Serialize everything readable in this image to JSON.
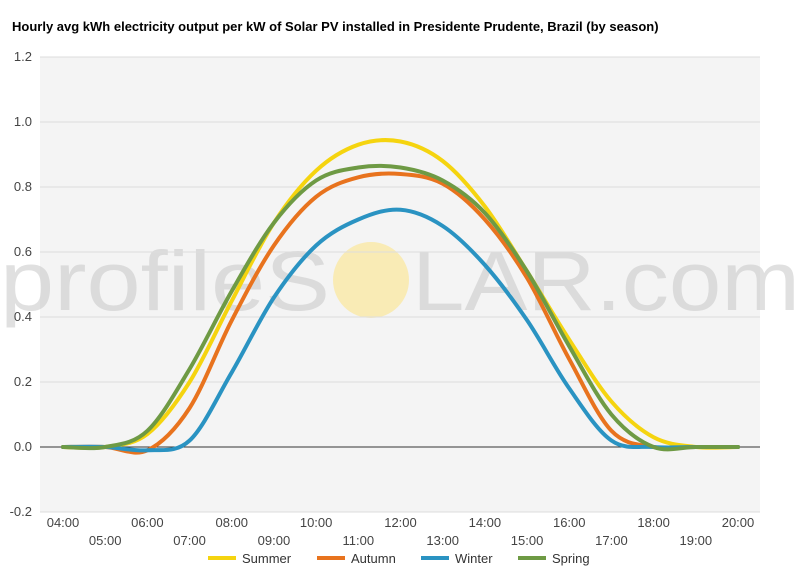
{
  "chart_data": {
    "type": "line",
    "title": "Hourly avg kWh electricity output per kW of Solar PV installed in Presidente Prudente, Brazil (by season)",
    "xlabel": "",
    "ylabel": "",
    "categories": [
      "04:00",
      "05:00",
      "06:00",
      "07:00",
      "08:00",
      "09:00",
      "10:00",
      "11:00",
      "12:00",
      "13:00",
      "14:00",
      "15:00",
      "16:00",
      "17:00",
      "18:00",
      "19:00",
      "20:00"
    ],
    "ylim": [
      -0.2,
      1.2
    ],
    "yticks": [
      -0.2,
      0.0,
      0.2,
      0.4,
      0.6,
      0.8,
      1.0,
      1.2
    ],
    "ytick_labels": [
      "-0.2",
      "0.0",
      "0.2",
      "0.4",
      "0.6",
      "0.8",
      "1.0",
      "1.2"
    ],
    "grid": true,
    "legend_position": "bottom",
    "series": [
      {
        "name": "Summer",
        "color": "#f5d40f",
        "values": [
          0.0,
          0.0,
          0.04,
          0.2,
          0.45,
          0.69,
          0.85,
          0.93,
          0.94,
          0.88,
          0.74,
          0.54,
          0.33,
          0.14,
          0.03,
          0.0,
          0.0
        ]
      },
      {
        "name": "Autumn",
        "color": "#e8731e",
        "values": [
          0.0,
          0.0,
          -0.01,
          0.12,
          0.39,
          0.62,
          0.77,
          0.83,
          0.84,
          0.81,
          0.7,
          0.52,
          0.27,
          0.05,
          0.0,
          0.0,
          0.0
        ]
      },
      {
        "name": "Winter",
        "color": "#2a93c2",
        "values": [
          0.0,
          0.0,
          -0.01,
          0.02,
          0.23,
          0.46,
          0.62,
          0.7,
          0.73,
          0.68,
          0.56,
          0.39,
          0.18,
          0.02,
          0.0,
          0.0,
          0.0
        ]
      },
      {
        "name": "Spring",
        "color": "#6e9a44",
        "values": [
          0.0,
          0.0,
          0.05,
          0.24,
          0.48,
          0.69,
          0.82,
          0.86,
          0.86,
          0.82,
          0.72,
          0.54,
          0.31,
          0.1,
          0.0,
          0.0,
          0.0
        ]
      }
    ]
  },
  "watermark": {
    "text_left": "profileS",
    "text_right": "LAR.com",
    "sun_color": "#fbe79a"
  }
}
